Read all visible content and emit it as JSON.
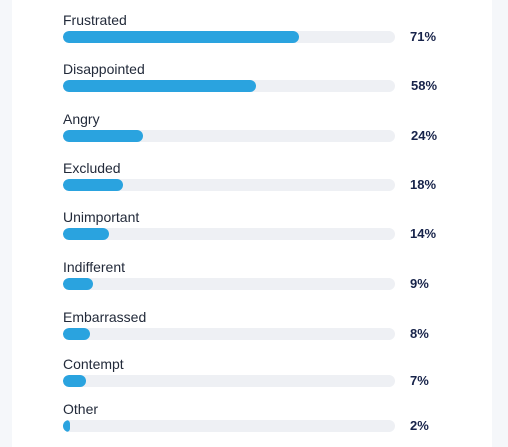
{
  "chart_data": {
    "type": "bar",
    "orientation": "horizontal",
    "categories": [
      "Frustrated",
      "Disappointed",
      "Angry",
      "Excluded",
      "Unimportant",
      "Indifferent",
      "Embarrassed",
      "Contempt",
      "Other"
    ],
    "values": [
      71,
      58,
      24,
      18,
      14,
      9,
      8,
      7,
      2
    ],
    "value_labels": [
      "71%",
      "58%",
      "24%",
      "18%",
      "14%",
      "9%",
      "8%",
      "7%",
      "2%"
    ],
    "title": "",
    "xlabel": "",
    "ylabel": "",
    "xlim": [
      0,
      100
    ],
    "grid": false,
    "bar_color": "#2aa3df",
    "track_color": "#eef0f4"
  }
}
